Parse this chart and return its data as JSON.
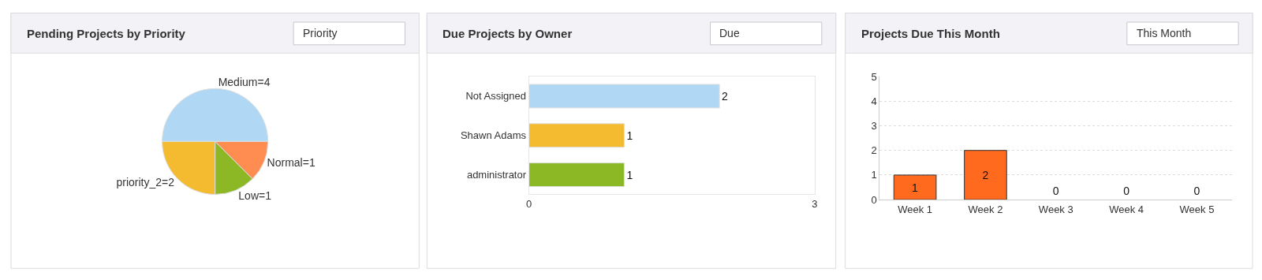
{
  "chart_data": [
    {
      "type": "pie",
      "title": "Pending Projects by Priority",
      "annotations": [
        "Priority"
      ],
      "categories": [
        "Medium=4",
        "Normal=1",
        "Low=1",
        "priority_2=2"
      ],
      "values": [
        4,
        1,
        1,
        2
      ],
      "colors": [
        "#b0d8f5",
        "#ff8c50",
        "#8bb824",
        "#f5bb30"
      ]
    },
    {
      "type": "bar",
      "orientation": "horizontal",
      "title": "Due Projects by Owner",
      "annotations": [
        "Due"
      ],
      "categories": [
        "Not Assigned",
        "Shawn Adams",
        "administrator"
      ],
      "values": [
        2,
        1,
        1
      ],
      "colors": [
        "#b0d8f5",
        "#f5bb30",
        "#8bb824"
      ],
      "xlim": [
        0,
        3
      ],
      "xticks": [
        0,
        3
      ],
      "data_labels": true
    },
    {
      "type": "bar",
      "title": "Projects Due This Month",
      "annotations": [
        "This Month"
      ],
      "categories": [
        "Week 1",
        "Week 2",
        "Week 3",
        "Week 4",
        "Week 5"
      ],
      "values": [
        1,
        2,
        0,
        0,
        0
      ],
      "color": "#ff6a1f",
      "ylim": [
        0,
        5
      ],
      "yticks": [
        0,
        1,
        2,
        3,
        4,
        5
      ],
      "grid": "y",
      "data_labels": true
    }
  ]
}
